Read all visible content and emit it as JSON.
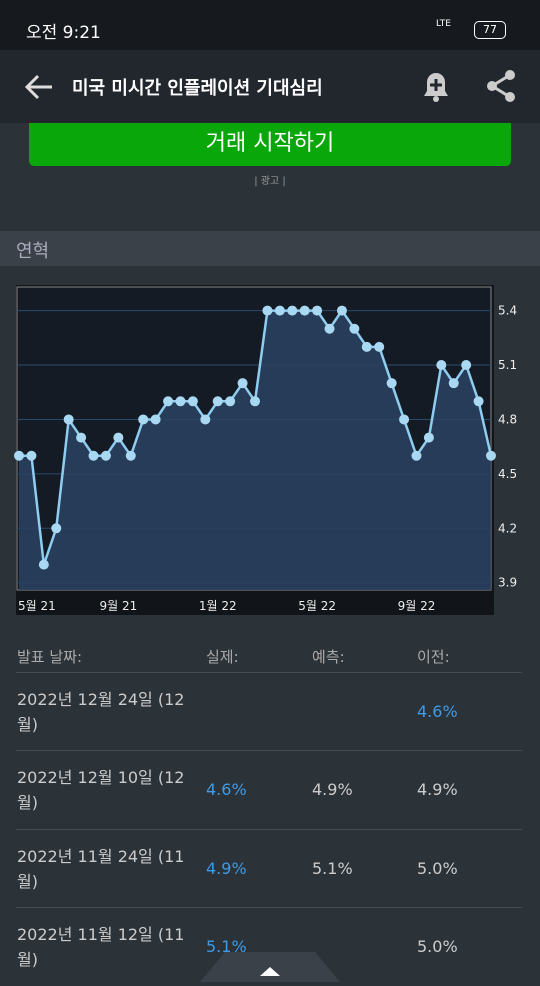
{
  "status_bar": {
    "time": "오전 9:21",
    "network": "LTE",
    "battery": "77"
  },
  "header": {
    "title": "미국 미시간 인플레이션 기대심리"
  },
  "button": {
    "label": "거래 시작하기"
  },
  "ad_label": "| 광고 |",
  "section": {
    "title": "연혁"
  },
  "chart_data": {
    "type": "line",
    "categories": [
      "5월 21",
      null,
      null,
      null,
      null,
      null,
      null,
      null,
      "9월 21",
      null,
      null,
      null,
      null,
      null,
      null,
      null,
      "1월 22",
      null,
      null,
      null,
      null,
      null,
      null,
      null,
      "5월 22",
      null,
      null,
      null,
      null,
      null,
      null,
      null,
      "9월 22",
      null,
      null,
      null,
      null,
      null,
      null
    ],
    "values": [
      4.6,
      4.6,
      4.0,
      4.2,
      4.8,
      4.7,
      4.6,
      4.6,
      4.7,
      4.6,
      4.8,
      4.8,
      4.9,
      4.9,
      4.9,
      4.8,
      4.9,
      4.9,
      5.0,
      4.9,
      5.4,
      5.4,
      5.4,
      5.4,
      5.4,
      5.3,
      5.4,
      5.3,
      5.2,
      5.2,
      5.0,
      4.8,
      4.6,
      4.7,
      5.1,
      5.0,
      5.1,
      4.9,
      4.6
    ],
    "color": "#8ecdf0",
    "ylim": [
      3.86,
      5.53
    ],
    "yticks": [
      3.9,
      4.2,
      4.5,
      4.8,
      5.1,
      5.4
    ],
    "grid": true
  },
  "table": {
    "header": {
      "date": "발표 날짜:",
      "actual": "실제:",
      "forecast": "예측:",
      "previous": "이전:"
    },
    "rows": [
      {
        "date": "2022년 12월 24일 (12월)",
        "previous": "4.6%"
      },
      {
        "date": "2022년 12월 10일 (12월)",
        "actual": "4.6%",
        "forecast": "4.9%",
        "previous": "4.9%"
      },
      {
        "date": "2022년 11월 24일 (11월)",
        "actual": "4.9%",
        "forecast": "5.1%",
        "previous": "5.0%"
      },
      {
        "date": "2022년 11월 12일 (11월)",
        "actual": "5.1%",
        "previous": "5.0%"
      }
    ]
  }
}
